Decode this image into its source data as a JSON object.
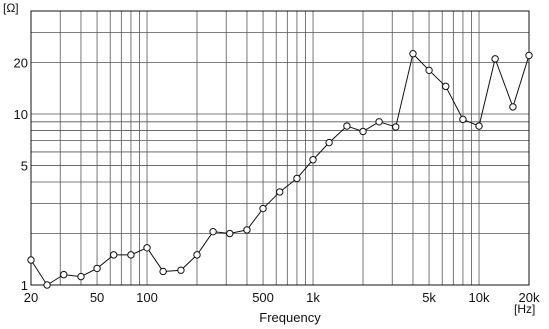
{
  "chart_data": {
    "type": "line",
    "title": "",
    "xlabel": "Frequency",
    "ylabel": "",
    "x_unit_label": "[Hz]",
    "y_unit_label": "[Ω]",
    "x_scale": "log",
    "y_scale": "log",
    "xlim": [
      20,
      20000
    ],
    "ylim": [
      1,
      40
    ],
    "grid": true,
    "x_ticks": [
      {
        "value": 20,
        "label": "20"
      },
      {
        "value": 50,
        "label": "50"
      },
      {
        "value": 100,
        "label": "100"
      },
      {
        "value": 500,
        "label": "500"
      },
      {
        "value": 1000,
        "label": "1k"
      },
      {
        "value": 5000,
        "label": "5k"
      },
      {
        "value": 10000,
        "label": "10k"
      },
      {
        "value": 20000,
        "label": "20k"
      }
    ],
    "y_ticks": [
      {
        "value": 1,
        "label": "1"
      },
      {
        "value": 5,
        "label": "5"
      },
      {
        "value": 10,
        "label": "10"
      },
      {
        "value": 20,
        "label": "20"
      }
    ],
    "x_gridlines": [
      20,
      30,
      40,
      50,
      60,
      70,
      80,
      90,
      100,
      200,
      300,
      400,
      500,
      600,
      700,
      800,
      900,
      1000,
      2000,
      3000,
      4000,
      5000,
      6000,
      7000,
      8000,
      9000,
      10000,
      20000
    ],
    "y_gridlines": [
      1,
      2,
      3,
      4,
      5,
      6,
      7,
      8,
      9,
      10,
      20,
      30,
      40
    ],
    "series": [
      {
        "color": "#111111",
        "marker": "circle",
        "x": [
          20,
          25,
          31.5,
          40,
          50,
          63,
          80,
          100,
          125,
          160,
          200,
          250,
          315,
          400,
          500,
          630,
          800,
          1000,
          1250,
          1600,
          2000,
          2500,
          3150,
          4000,
          5000,
          6300,
          8000,
          10000,
          12500,
          16000,
          20000
        ],
        "y": [
          1.4,
          1.0,
          1.15,
          1.12,
          1.25,
          1.5,
          1.5,
          1.65,
          1.2,
          1.22,
          1.5,
          2.05,
          2.0,
          2.1,
          2.8,
          3.5,
          4.2,
          5.4,
          6.8,
          8.5,
          7.9,
          9.0,
          8.4,
          22.5,
          18.0,
          14.5,
          9.3,
          8.5,
          21.0,
          11.0,
          22.0
        ]
      }
    ]
  }
}
